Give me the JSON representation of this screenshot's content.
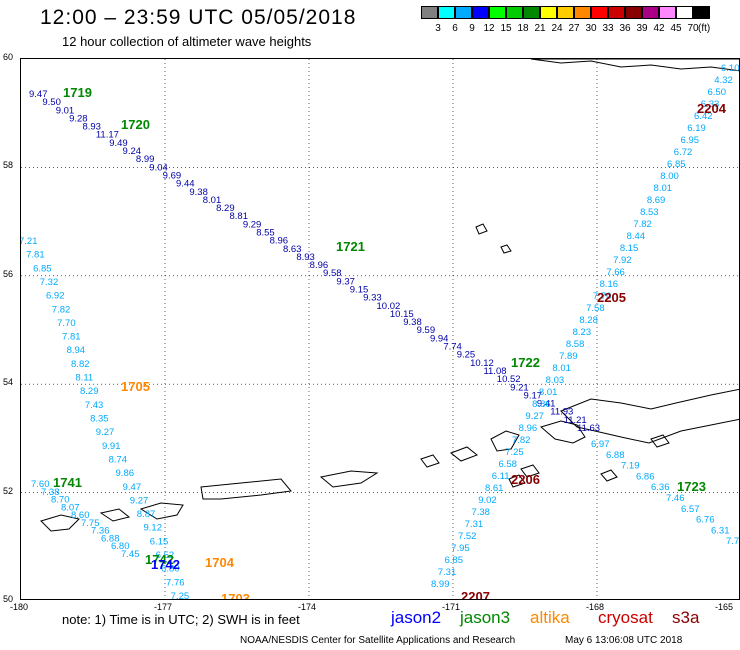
{
  "header": {
    "title": "12:00 – 23:59 UTC 05/05/2018",
    "subtitle": "12 hour collection of altimeter wave heights"
  },
  "legend": {
    "unit": "(ft)",
    "entries": [
      {
        "label": "3",
        "color": "#808080"
      },
      {
        "label": "6",
        "color": "#00ffff"
      },
      {
        "label": "9",
        "color": "#00aaff"
      },
      {
        "label": "12",
        "color": "#0000ff"
      },
      {
        "label": "15",
        "color": "#00ff00"
      },
      {
        "label": "18",
        "color": "#00cc00"
      },
      {
        "label": "21",
        "color": "#008800"
      },
      {
        "label": "24",
        "color": "#ffff00"
      },
      {
        "label": "27",
        "color": "#ffcc00"
      },
      {
        "label": "30",
        "color": "#ff8800"
      },
      {
        "label": "33",
        "color": "#ff0000"
      },
      {
        "label": "36",
        "color": "#cc0000"
      },
      {
        "label": "39",
        "color": "#880000"
      },
      {
        "label": "42",
        "color": "#aa0088"
      },
      {
        "label": "45",
        "color": "#ff88ff"
      },
      {
        "label": "70",
        "color": "#ffffff"
      },
      {
        "label": "",
        "color": "#000000"
      }
    ]
  },
  "map": {
    "lat_range": [
      50,
      60
    ],
    "lon_range": [
      -180,
      -165
    ],
    "lat_labels": [
      "60",
      "58",
      "56",
      "54",
      "52",
      "50"
    ],
    "lon_labels": [
      "-180",
      "-177",
      "-174",
      "-171",
      "-168",
      "-165"
    ],
    "passes": [
      {
        "label": "1719",
        "color": "#008800"
      },
      {
        "label": "1720",
        "color": "#008800"
      },
      {
        "label": "1721",
        "color": "#008800"
      },
      {
        "label": "1722",
        "color": "#008800"
      },
      {
        "label": "1723",
        "color": "#008800"
      },
      {
        "label": "1741",
        "color": "#008800"
      },
      {
        "label": "1742",
        "color": "#008800"
      },
      {
        "label": "1742",
        "color": "#0000ff"
      },
      {
        "label": "1705",
        "color": "#ff8800"
      },
      {
        "label": "1704",
        "color": "#ff8800"
      },
      {
        "label": "1703",
        "color": "#ff8800"
      },
      {
        "label": "2204",
        "color": "#880000"
      },
      {
        "label": "2205",
        "color": "#880000"
      },
      {
        "label": "2206",
        "color": "#880000"
      },
      {
        "label": "2207",
        "color": "#880000"
      }
    ],
    "tracks": {
      "track_a": {
        "color": "#0000aa",
        "values": [
          "9.47",
          "9.50",
          "9.01",
          "9.28",
          "8.93",
          "11.17",
          "9.49",
          "9.24",
          "8.99",
          "9.04",
          "9.69",
          "9.44",
          "9.38",
          "8.01",
          "8.29",
          "8.81",
          "9.29",
          "8.55",
          "8.96",
          "8.63",
          "8.93",
          "8.96",
          "9.58",
          "9.37",
          "9.15",
          "9.33",
          "10.02",
          "10.15",
          "9.38",
          "9.59",
          "9.94",
          "7.74",
          "9.25",
          "10.12",
          "11.08",
          "10.52",
          "9.21",
          "9.17",
          "9.41",
          "11.93",
          "11.21",
          "11.63"
        ]
      },
      "track_b": {
        "color": "#00aaff",
        "values": [
          "7.21",
          "7.81",
          "6.85",
          "7.32",
          "6.92",
          "7.82",
          "7.70",
          "7.81",
          "8.94",
          "8.82",
          "8.11",
          "8.29",
          "7.43",
          "8.35",
          "9.27",
          "9.91",
          "8.74",
          "9.86",
          "9.47",
          "9.27",
          "8.87",
          "9.12",
          "6.15",
          "6.52",
          "6.80",
          "7.76",
          "7.25"
        ]
      },
      "track_c": {
        "color": "#00aaff",
        "values": [
          "6.10",
          "4.32",
          "6.50",
          "6.33",
          "6.42",
          "6.19",
          "6.95",
          "6.72",
          "6.85",
          "8.00",
          "8.01",
          "8.69",
          "8.53",
          "7.82",
          "8.44",
          "8.15",
          "7.92",
          "7.66",
          "8.16",
          "7.70",
          "7.58",
          "8.28",
          "8.23",
          "8.58",
          "7.89",
          "8.01",
          "8.03",
          "8.01",
          "8.86",
          "9.27",
          "8.96",
          "7.82",
          "7.25",
          "6.58",
          "6.11",
          "8.61",
          "9.02",
          "7.38",
          "7.31",
          "7.52",
          "7.95",
          "6.85",
          "7.31",
          "8.99"
        ]
      },
      "track_d": {
        "color": "#00aaff",
        "values": [
          "6.97",
          "6.88",
          "7.19",
          "6.86",
          "6.36",
          "7.46",
          "6.57",
          "6.76",
          "6.31",
          "7.70",
          "7.39"
        ]
      },
      "track_e": {
        "color": "#00aaff",
        "values": [
          "7.60",
          "7.38",
          "8.70",
          "8.07",
          "8.60",
          "7.75",
          "7.36",
          "6.88",
          "6.80",
          "7.45"
        ]
      }
    }
  },
  "footer": {
    "note": "note:  1) Time is in UTC;  2) SWH is in feet",
    "satellites": [
      {
        "name": "jason2",
        "color": "#0000ff"
      },
      {
        "name": "jason3",
        "color": "#008800"
      },
      {
        "name": "altika",
        "color": "#ff8800"
      },
      {
        "name": "cryosat",
        "color": "#cc0000"
      },
      {
        "name": "s3a",
        "color": "#880000"
      }
    ],
    "credit": "NOAA/NESDIS Center for Satellite Applications and Research",
    "timestamp": "May  6 13:06:08 UTC 2018"
  }
}
